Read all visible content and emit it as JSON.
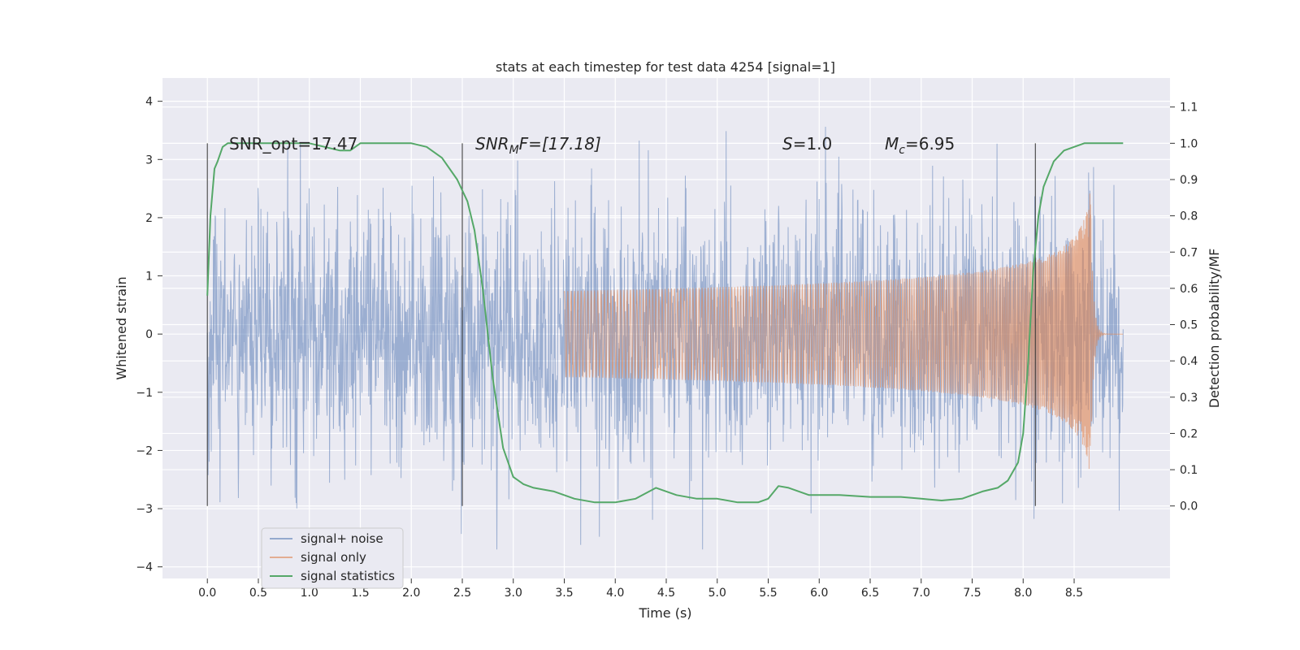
{
  "chart_data": {
    "type": "line",
    "title": "stats at each timestep for test data 4254 [signal=1]",
    "xlabel": "Time (s)",
    "ylabel": "Whitened strain",
    "ylabel_right": "Detection probability/MF",
    "xlim": [
      -0.44,
      9.44
    ],
    "ylim": [
      -4.2,
      4.4
    ],
    "ylim_right": [
      -0.2,
      1.18
    ],
    "xticks": [
      "0.0",
      "0.5",
      "1.0",
      "1.5",
      "2.0",
      "2.5",
      "3.0",
      "3.5",
      "4.0",
      "4.5",
      "5.0",
      "5.5",
      "6.0",
      "6.5",
      "7.0",
      "7.5",
      "8.0",
      "8.5"
    ],
    "yticks": [
      "−4",
      "−3",
      "−2",
      "−1",
      "0",
      "1",
      "2",
      "3",
      "4"
    ],
    "yticks_right": [
      "0.0",
      "0.1",
      "0.2",
      "0.3",
      "0.4",
      "0.5",
      "0.6",
      "0.7",
      "0.8",
      "0.9",
      "1.0",
      "1.1"
    ],
    "grid": true,
    "legend_position": "lower-left",
    "annotations": {
      "snr_opt": "SNR_opt=17.47",
      "snr_mf_base": "SNR",
      "snr_mf_sub": "M",
      "snr_mf_rest": "F=[17.18]",
      "s_label": "S",
      "s_value": "=1.0",
      "mc_base": "M",
      "mc_sub": "c",
      "mc_value": "=6.95"
    },
    "vertical_markers": [
      0.0,
      2.5,
      8.12
    ],
    "noise": {
      "x_start": 0.0,
      "x_end": 8.98,
      "amplitude_range": [
        -3.7,
        4.0
      ]
    },
    "signal_only": {
      "x_start": 3.5,
      "peak_x": 8.66,
      "peak_amplitude": 2.5,
      "end_x": 8.98
    },
    "series": [
      {
        "name": "signal+ noise",
        "color": "#4c72b0"
      },
      {
        "name": "signal only",
        "color": "#dd8452"
      },
      {
        "name": "signal statistics",
        "color": "#55a868",
        "x": [
          0.0,
          0.03,
          0.07,
          0.1,
          0.15,
          0.2,
          0.3,
          0.5,
          0.8,
          1.0,
          1.15,
          1.3,
          1.4,
          1.5,
          1.6,
          1.8,
          2.0,
          2.15,
          2.3,
          2.45,
          2.55,
          2.62,
          2.7,
          2.8,
          2.9,
          3.0,
          3.1,
          3.2,
          3.4,
          3.6,
          3.8,
          4.0,
          4.2,
          4.4,
          4.6,
          4.8,
          5.0,
          5.2,
          5.4,
          5.5,
          5.6,
          5.7,
          5.9,
          6.2,
          6.5,
          6.8,
          7.0,
          7.2,
          7.4,
          7.6,
          7.75,
          7.85,
          7.95,
          8.0,
          8.05,
          8.1,
          8.15,
          8.2,
          8.3,
          8.4,
          8.5,
          8.6,
          8.7,
          8.8,
          8.9,
          8.98
        ],
        "values": [
          0.58,
          0.8,
          0.93,
          0.95,
          0.99,
          1.0,
          1.0,
          1.0,
          1.0,
          1.0,
          0.99,
          0.98,
          0.98,
          1.0,
          1.0,
          1.0,
          1.0,
          0.99,
          0.96,
          0.9,
          0.84,
          0.76,
          0.6,
          0.35,
          0.16,
          0.08,
          0.06,
          0.05,
          0.04,
          0.02,
          0.01,
          0.01,
          0.02,
          0.05,
          0.03,
          0.02,
          0.02,
          0.01,
          0.01,
          0.02,
          0.055,
          0.05,
          0.03,
          0.03,
          0.025,
          0.025,
          0.02,
          0.015,
          0.02,
          0.04,
          0.05,
          0.07,
          0.12,
          0.2,
          0.4,
          0.65,
          0.8,
          0.88,
          0.95,
          0.98,
          0.99,
          1.0,
          1.0,
          1.0,
          1.0,
          1.0
        ]
      }
    ]
  }
}
